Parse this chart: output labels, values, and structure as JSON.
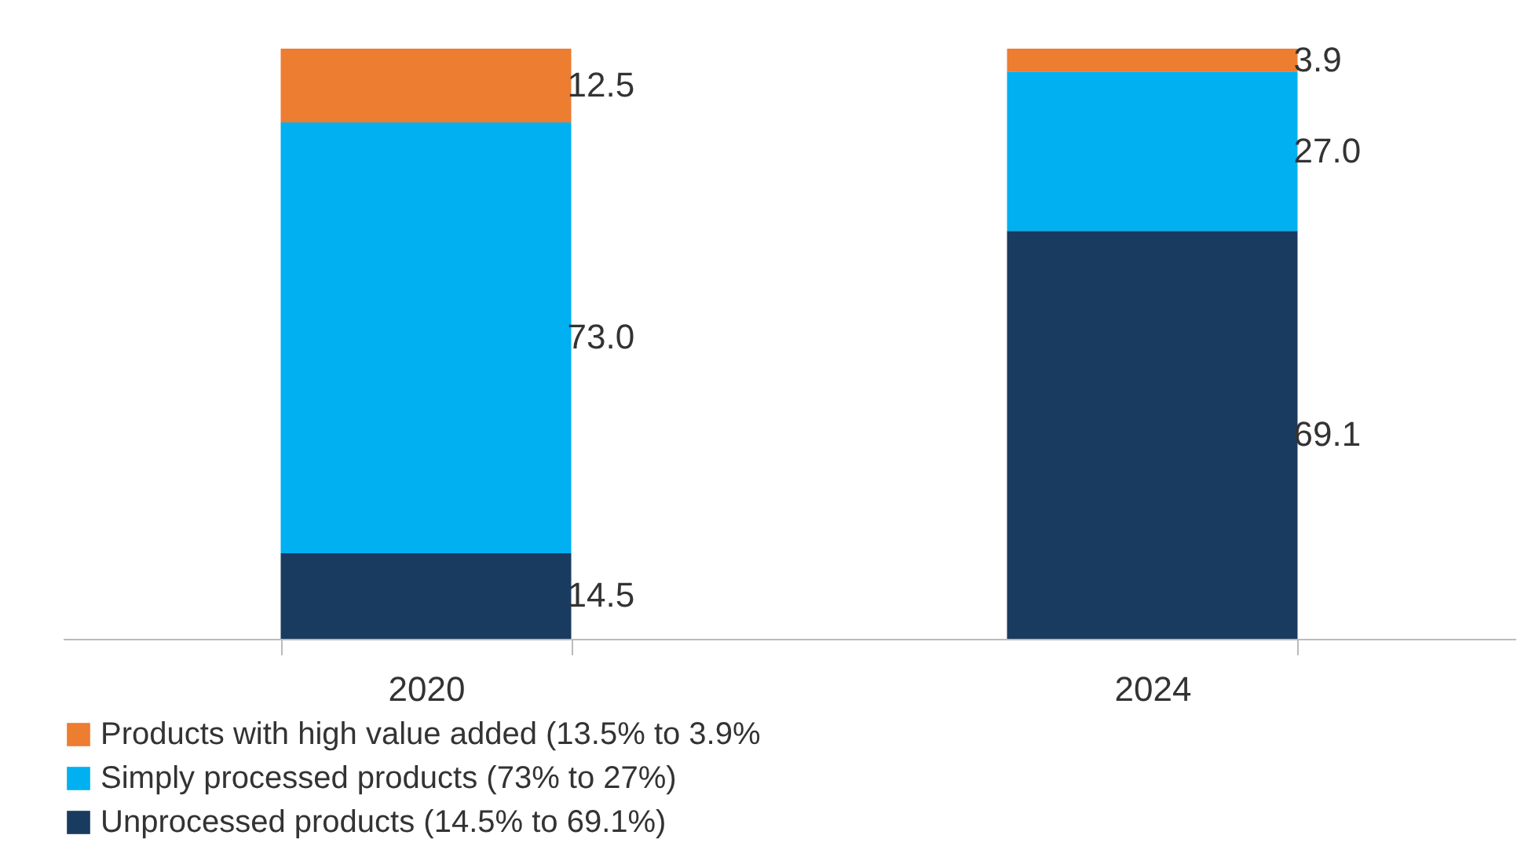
{
  "chart_data": {
    "type": "bar",
    "stacked": true,
    "categories": [
      "2020",
      "2024"
    ],
    "series": [
      {
        "name": "Unprocessed products (14.5% to 69.1%)",
        "color": "#1a3b60",
        "values": [
          14.5,
          69.1
        ],
        "value_labels": [
          "14.5",
          "69.1"
        ]
      },
      {
        "name": "Simply processed products (73% to 27%)",
        "color": "#00b0f0",
        "values": [
          73.0,
          27.0
        ],
        "value_labels": [
          "73.0",
          "27.0"
        ]
      },
      {
        "name": "Products with high value added (13.5% to 3.9%",
        "color": "#ed7d31",
        "values": [
          12.5,
          3.9
        ],
        "value_labels": [
          "12.5",
          "3.9"
        ]
      }
    ],
    "legend": "bottom"
  }
}
